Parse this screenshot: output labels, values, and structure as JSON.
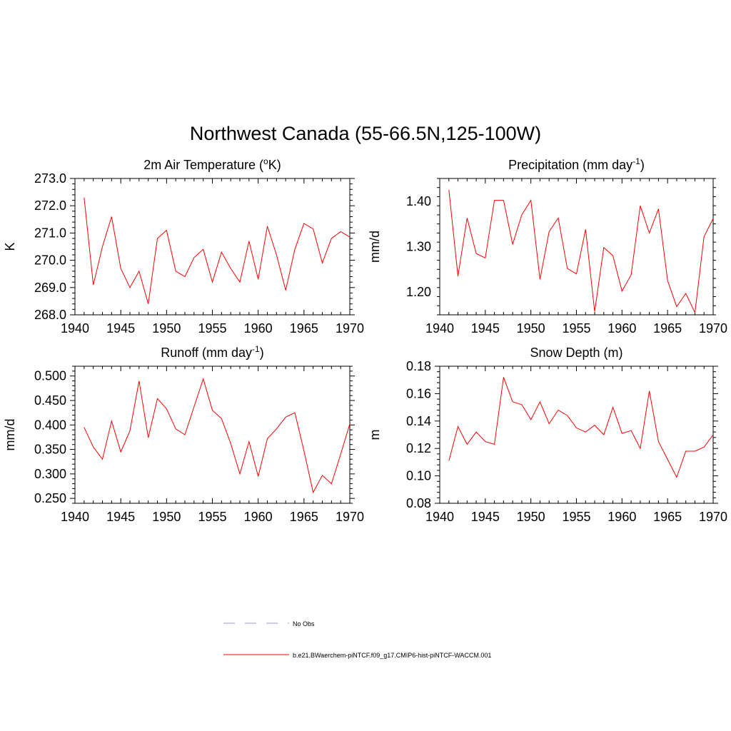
{
  "figure": {
    "title": "Northwest Canada (55-66.5N,125-100W)",
    "colors": {
      "model": "#ff0000",
      "obs": "#9999dd",
      "axis": "#000000"
    }
  },
  "chart_data": [
    {
      "type": "line",
      "title": "2m Air Temperature (",
      "title_sup": "o",
      "title_after": "K)",
      "xlabel": "",
      "ylabel": "K",
      "xlim": [
        1940,
        1970
      ],
      "ylim": [
        268.0,
        273.0
      ],
      "xticks": [
        "1940",
        "1945",
        "1950",
        "1955",
        "1960",
        "1965",
        "1970"
      ],
      "yticks": [
        "268.0",
        "269.0",
        "270.0",
        "271.0",
        "272.0",
        "273.0"
      ],
      "x": [
        1941,
        1942,
        1943,
        1944,
        1945,
        1946,
        1947,
        1948,
        1949,
        1950,
        1951,
        1952,
        1953,
        1954,
        1955,
        1956,
        1957,
        1958,
        1959,
        1960,
        1961,
        1962,
        1963,
        1964,
        1965,
        1966,
        1967,
        1968,
        1969,
        1970
      ],
      "series": [
        {
          "name": "b.e21.BWaerchem-piNTCF.f09_g17.CMIP6-hist-piNTCF-WACCM.001",
          "values": [
            272.3,
            269.1,
            270.5,
            271.6,
            269.7,
            269.0,
            269.6,
            268.4,
            270.8,
            271.1,
            269.6,
            269.4,
            270.1,
            270.4,
            269.2,
            270.3,
            269.7,
            269.2,
            270.7,
            269.3,
            271.25,
            270.2,
            268.9,
            270.4,
            271.35,
            271.15,
            269.9,
            270.8,
            271.05,
            270.85
          ]
        }
      ]
    },
    {
      "type": "line",
      "title": "Precipitation (mm day",
      "title_sup": "-1",
      "title_after": ")",
      "xlabel": "",
      "ylabel": "mm/d",
      "xlim": [
        1940,
        1970
      ],
      "ylim": [
        1.15,
        1.45
      ],
      "xticks": [
        "1940",
        "1945",
        "1950",
        "1955",
        "1960",
        "1965",
        "1970"
      ],
      "yticks": [
        "1.20",
        "1.30",
        "1.40"
      ],
      "x": [
        1941,
        1942,
        1943,
        1944,
        1945,
        1946,
        1947,
        1948,
        1949,
        1950,
        1951,
        1952,
        1953,
        1954,
        1955,
        1956,
        1957,
        1958,
        1959,
        1960,
        1961,
        1962,
        1963,
        1964,
        1965,
        1966,
        1967,
        1968,
        1969,
        1970
      ],
      "series": [
        {
          "name": "b.e21.BWaerchem-piNTCF.f09_g17.CMIP6-hist-piNTCF-WACCM.001",
          "values": [
            1.425,
            1.235,
            1.363,
            1.285,
            1.275,
            1.402,
            1.402,
            1.305,
            1.37,
            1.402,
            1.228,
            1.333,
            1.363,
            1.252,
            1.24,
            1.338,
            1.157,
            1.298,
            1.28,
            1.202,
            1.238,
            1.39,
            1.33,
            1.383,
            1.225,
            1.168,
            1.197,
            1.155,
            1.322,
            1.362
          ]
        }
      ]
    },
    {
      "type": "line",
      "title": "Runoff (mm day",
      "title_sup": "-1",
      "title_after": ")",
      "xlabel": "",
      "ylabel": "mm/d",
      "xlim": [
        1940,
        1970
      ],
      "ylim": [
        0.24,
        0.52
      ],
      "xticks": [
        "1940",
        "1945",
        "1950",
        "1955",
        "1960",
        "1965",
        "1970"
      ],
      "yticks": [
        "0.250",
        "0.300",
        "0.350",
        "0.400",
        "0.450",
        "0.500"
      ],
      "x": [
        1941,
        1942,
        1943,
        1944,
        1945,
        1946,
        1947,
        1948,
        1949,
        1950,
        1951,
        1952,
        1953,
        1954,
        1955,
        1956,
        1957,
        1958,
        1959,
        1960,
        1961,
        1962,
        1963,
        1964,
        1965,
        1966,
        1967,
        1968,
        1969,
        1970
      ],
      "series": [
        {
          "name": "b.e21.BWaerchem-piNTCF.f09_g17.CMIP6-hist-piNTCF-WACCM.001",
          "values": [
            0.395,
            0.355,
            0.33,
            0.408,
            0.345,
            0.388,
            0.49,
            0.374,
            0.454,
            0.433,
            0.392,
            0.38,
            0.437,
            0.494,
            0.43,
            0.413,
            0.362,
            0.3,
            0.366,
            0.295,
            0.372,
            0.392,
            0.416,
            0.425,
            0.347,
            0.262,
            0.297,
            0.28,
            0.34,
            0.402
          ]
        }
      ]
    },
    {
      "type": "line",
      "title": "Snow Depth (m)",
      "title_sup": "",
      "title_after": "",
      "xlabel": "",
      "ylabel": "m",
      "xlim": [
        1940,
        1970
      ],
      "ylim": [
        0.08,
        0.18
      ],
      "xticks": [
        "1940",
        "1945",
        "1950",
        "1955",
        "1960",
        "1965",
        "1970"
      ],
      "yticks": [
        "0.08",
        "0.10",
        "0.12",
        "0.14",
        "0.16",
        "0.18"
      ],
      "x": [
        1941,
        1942,
        1943,
        1944,
        1945,
        1946,
        1947,
        1948,
        1949,
        1950,
        1951,
        1952,
        1953,
        1954,
        1955,
        1956,
        1957,
        1958,
        1959,
        1960,
        1961,
        1962,
        1963,
        1964,
        1965,
        1966,
        1967,
        1968,
        1969,
        1970
      ],
      "series": [
        {
          "name": "b.e21.BWaerchem-piNTCF.f09_g17.CMIP6-hist-piNTCF-WACCM.001",
          "values": [
            0.111,
            0.136,
            0.123,
            0.132,
            0.125,
            0.123,
            0.172,
            0.154,
            0.152,
            0.141,
            0.154,
            0.138,
            0.148,
            0.144,
            0.135,
            0.132,
            0.137,
            0.13,
            0.15,
            0.131,
            0.133,
            0.12,
            0.162,
            0.125,
            0.112,
            0.099,
            0.118,
            0.118,
            0.121,
            0.13
          ]
        }
      ]
    }
  ],
  "legend": {
    "items": [
      {
        "label": "No Obs",
        "style": "dashed",
        "color": "#9999dd"
      },
      {
        "label": "b.e21.BWaerchem-piNTCF.f09_g17.CMIP6-hist-piNTCF-WACCM.001",
        "style": "solid",
        "color": "#ff0000"
      }
    ]
  }
}
